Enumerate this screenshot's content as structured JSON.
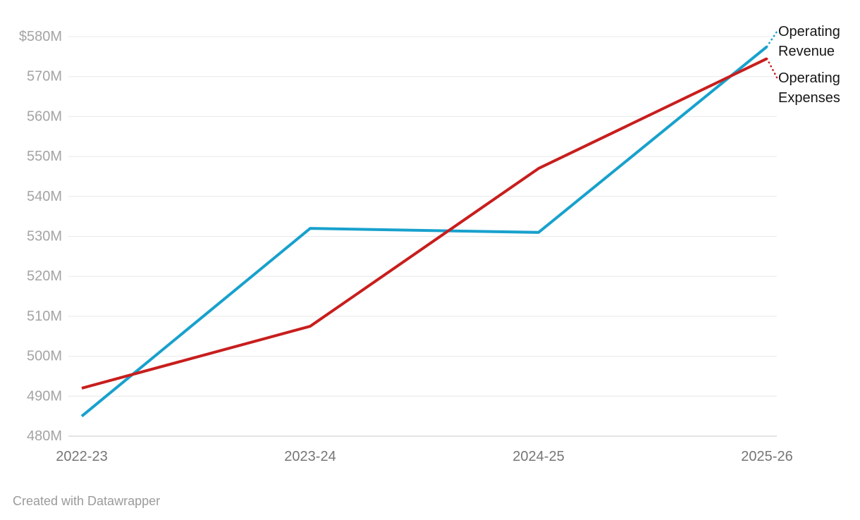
{
  "chart_data": {
    "type": "line",
    "categories": [
      "2022-23",
      "2023-24",
      "2024-25",
      "2025-26"
    ],
    "series": [
      {
        "name": "Operating Revenue",
        "color": "#18a1cd",
        "values": [
          485,
          532,
          531,
          577.5
        ]
      },
      {
        "name": "Operating Expenses",
        "color": "#c71e1d",
        "values": [
          492,
          507.5,
          547,
          574.5
        ]
      }
    ],
    "title": "",
    "xlabel": "",
    "ylabel": "",
    "ylim": [
      480,
      580
    ],
    "y_tick_step": 10,
    "y_tick_labels": [
      "$580M",
      "570M",
      "560M",
      "550M",
      "540M",
      "530M",
      "520M",
      "510M",
      "500M",
      "490M",
      "480M"
    ],
    "grid": "horizontal",
    "gridline_color": "#e8e8e8",
    "baseline_color": "#c8c8c8",
    "legend_position": "direct-labels-right",
    "leader_style": "dotted"
  },
  "attribution": "Created with Datawrapper"
}
